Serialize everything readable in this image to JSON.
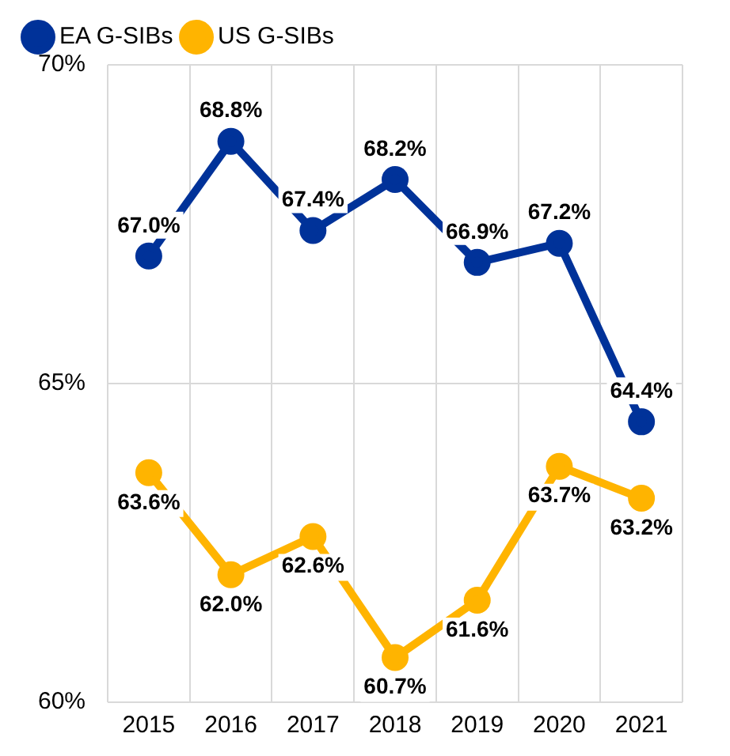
{
  "chart_data": {
    "type": "line",
    "categories": [
      "2015",
      "2016",
      "2017",
      "2018",
      "2019",
      "2020",
      "2021"
    ],
    "series": [
      {
        "name": "EA G-SIBs",
        "color": "#003299",
        "values": [
          67.0,
          68.8,
          67.4,
          68.2,
          66.9,
          67.2,
          64.4
        ],
        "value_labels": [
          "67.0%",
          "68.8%",
          "67.4%",
          "68.2%",
          "66.9%",
          "67.2%",
          "64.4%"
        ]
      },
      {
        "name": "US G-SIBs",
        "color": "#ffb400",
        "values": [
          63.6,
          62.0,
          62.6,
          60.7,
          61.6,
          63.7,
          63.2
        ],
        "value_labels": [
          "63.6%",
          "62.0%",
          "62.6%",
          "60.7%",
          "61.6%",
          "63.7%",
          "63.2%"
        ]
      }
    ],
    "ylim": [
      60,
      70
    ],
    "yticks": [
      {
        "value": 60,
        "label": "60%"
      },
      {
        "value": 65,
        "label": "65%"
      },
      {
        "value": 70,
        "label": "70%"
      }
    ],
    "grid": true,
    "legend": "top left",
    "marker": "circle",
    "line_style": "solid"
  }
}
